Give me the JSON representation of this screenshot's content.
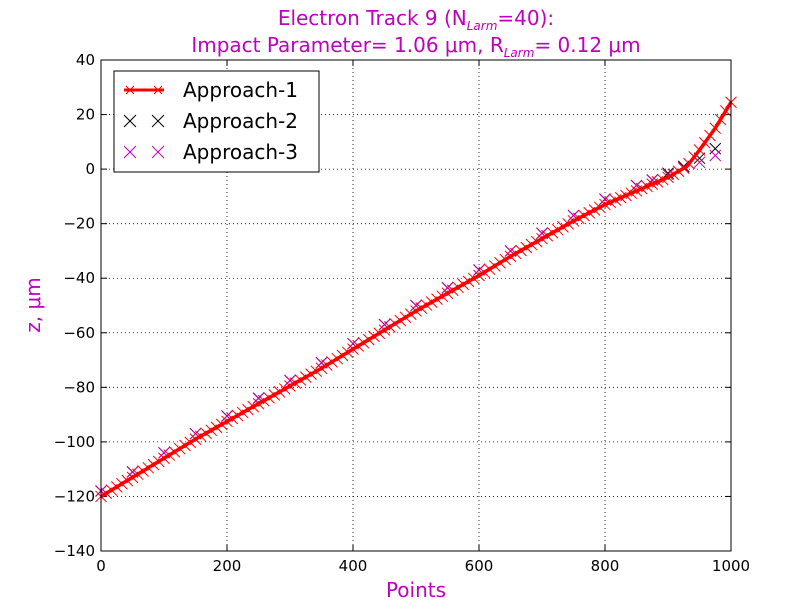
{
  "chart_data": {
    "type": "scatter",
    "title_line1": "Electron Track 9 (N",
    "title_line1_sub": "Larm",
    "title_line1_rest": "=40):",
    "title_line2_a": "Impact Parameter= 1.06 μm, R",
    "title_line2_sub": "Larm",
    "title_line2_b": "= 0.12 μm",
    "xlabel": "Points",
    "ylabel": "z, μm",
    "xlim": [
      0,
      1000
    ],
    "ylim": [
      -140,
      40
    ],
    "xticks": [
      0,
      200,
      400,
      600,
      800,
      1000
    ],
    "xtick_labels": [
      "0",
      "200",
      "400",
      "600",
      "800",
      "1000"
    ],
    "yticks": [
      -140,
      -120,
      -100,
      -80,
      -60,
      -40,
      -20,
      0,
      20,
      40
    ],
    "ytick_labels": [
      "−140",
      "−120",
      "−100",
      "−80",
      "−60",
      "−40",
      "−20",
      "0",
      "20",
      "40"
    ],
    "grid": true,
    "legend_position": "top-left",
    "title_color": "#bf00bf",
    "label_color": "#bf00bf",
    "series": [
      {
        "name": "Approach-1",
        "color": "#ff0000",
        "marker": "x-line",
        "x": [
          0,
          50,
          100,
          150,
          200,
          250,
          300,
          350,
          400,
          450,
          500,
          550,
          600,
          650,
          700,
          750,
          800,
          850,
          900,
          930,
          950,
          975,
          1000
        ],
        "y": [
          -120,
          -113,
          -106,
          -99,
          -92.5,
          -86,
          -79.5,
          -73,
          -66,
          -59,
          -52,
          -45.5,
          -39,
          -32,
          -25.5,
          -19,
          -13,
          -8,
          -3,
          1,
          7,
          15,
          24.5
        ]
      },
      {
        "name": "Approach-2",
        "color": "#000000",
        "marker": "x",
        "x": [
          0,
          50,
          100,
          150,
          200,
          250,
          300,
          350,
          400,
          450,
          500,
          550,
          600,
          650,
          700,
          750,
          800,
          850,
          875,
          900,
          925,
          950,
          975
        ],
        "y": [
          -118,
          -111,
          -104,
          -97,
          -90.5,
          -84,
          -77.5,
          -71,
          -64,
          -57,
          -50,
          -43.5,
          -37,
          -30,
          -23.5,
          -17,
          -11,
          -6,
          -4,
          -1.5,
          1,
          4,
          7.5
        ]
      },
      {
        "name": "Approach-3",
        "color": "#bf00bf",
        "marker": "x",
        "x": [
          0,
          50,
          100,
          150,
          200,
          250,
          300,
          350,
          400,
          450,
          500,
          550,
          600,
          650,
          700,
          750,
          800,
          850,
          875,
          900,
          925,
          950,
          975
        ],
        "y": [
          -118,
          -111,
          -104,
          -97,
          -90.5,
          -84,
          -77.5,
          -71,
          -64,
          -57,
          -50,
          -43.5,
          -37,
          -30,
          -23.5,
          -17,
          -11,
          -6,
          -4,
          -2,
          0.5,
          2.5,
          5
        ]
      }
    ]
  }
}
